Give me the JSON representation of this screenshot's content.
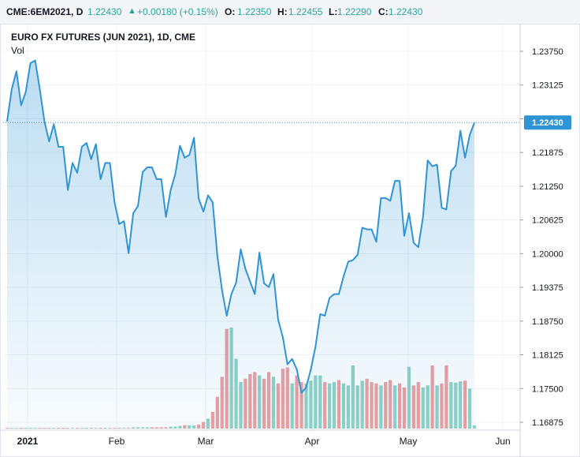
{
  "header": {
    "symbol": "CME:6EM2021, D",
    "last": "1.22430",
    "change": "+0.00180 (+0.15%)",
    "open_label": "O:",
    "open": "1.22350",
    "high_label": "H:",
    "high": "1.22455",
    "low_label": "L:",
    "low": "1.22290",
    "close_label": "C:",
    "close": "1.22430"
  },
  "legend": {
    "title": "EURO FX FUTURES (JUN 2021), 1D, CME",
    "vol_label": "Vol"
  },
  "colors": {
    "line": "#2f94d6",
    "area": "#2f94d6",
    "vol_up": "#8fd1c5",
    "vol_down": "#eb9f9f",
    "price_label_bg": "#2f94d6",
    "grid": "#eef0f4"
  },
  "chart_data": {
    "type": "area",
    "title": "EURO FX FUTURES (JUN 2021), 1D, CME",
    "xlabel": "",
    "ylabel": "",
    "ylim": [
      1.16875,
      1.2375
    ],
    "grid": true,
    "y_ticks": [
      "1.23750",
      "1.23125",
      "1.22500",
      "1.21875",
      "1.21250",
      "1.20625",
      "1.20000",
      "1.19375",
      "1.18750",
      "1.18125",
      "1.17500",
      "1.16875"
    ],
    "x_ticks": [
      "2021",
      "Feb",
      "Mar",
      "Apr",
      "May",
      "Jun"
    ],
    "current_price_label": "1.22430",
    "series": [
      {
        "values": [
          1.2245,
          1.2305,
          1.2338,
          1.2275,
          1.23,
          1.2353,
          1.2358,
          1.2305,
          1.2245,
          1.2208,
          1.224,
          1.2198,
          1.2198,
          1.2118,
          1.2168,
          1.215,
          1.2198,
          1.2205,
          1.2175,
          1.2203,
          1.2138,
          1.2168,
          1.2168,
          1.2095,
          1.2055,
          1.206,
          1.2001,
          1.2075,
          1.2088,
          1.2151,
          1.216,
          1.216,
          1.2138,
          1.2138,
          1.2068,
          1.2118,
          1.2148,
          1.22,
          1.2178,
          1.2183,
          1.2215,
          1.2102,
          1.2078,
          1.2108,
          1.2095,
          1.1995,
          1.1932,
          1.1885,
          1.1925,
          1.1946,
          1.2008,
          1.1972,
          1.1948,
          1.1925,
          1.2002,
          1.1945,
          1.1938,
          1.1962,
          1.1878,
          1.1845,
          1.1795,
          1.1805,
          1.1785,
          1.1742,
          1.1752,
          1.1785,
          1.1828,
          1.1888,
          1.1885,
          1.1918,
          1.1925,
          1.1925,
          1.1958,
          1.1985,
          1.1988,
          1.1998,
          1.2048,
          1.2045,
          1.2045,
          1.2022,
          1.2103,
          1.2103,
          1.2098,
          1.2135,
          1.2135,
          1.2033,
          1.2075,
          1.202,
          1.2012,
          1.2068,
          1.2173,
          1.2162,
          1.2165,
          1.2085,
          1.2082,
          1.2153,
          1.2163,
          1.2228,
          1.2178,
          1.222,
          1.2243
        ]
      }
    ],
    "volume": {
      "values": [
        0.1,
        0.1,
        0.1,
        0.1,
        0.1,
        0.1,
        0.1,
        0.1,
        0.1,
        0.1,
        0.1,
        0.1,
        0.1,
        0.1,
        0.1,
        0.1,
        0.1,
        0.1,
        0.1,
        0.1,
        0.1,
        0.1,
        0.1,
        0.1,
        0.1,
        0.1,
        0.1,
        0.2,
        0.2,
        0.2,
        0.2,
        0.2,
        0.2,
        0.2,
        0.2,
        0.3,
        0.3,
        0.4,
        0.5,
        0.5,
        0.5,
        0.6,
        1.0,
        1.5,
        2.5,
        4.8,
        7.8,
        15.0,
        15.2,
        10.5,
        7.0,
        7.5,
        8.2,
        8.5,
        8.0,
        7.5,
        8.5,
        7.8,
        6.8,
        9.0,
        9.2,
        6.8,
        8.0,
        7.0,
        6.8,
        7.2,
        8.0,
        8.0,
        7.0,
        6.8,
        7.0,
        7.3,
        6.8,
        6.5,
        9.5,
        6.5,
        7.2,
        7.5,
        7.0,
        6.8,
        6.5,
        7.0,
        7.3,
        6.5,
        6.8,
        6.2,
        9.3,
        6.5,
        7.0,
        6.2,
        6.5,
        9.5,
        6.5,
        6.8,
        9.5,
        7.0,
        6.9,
        7.1,
        7.2,
        6.0,
        0.5
      ],
      "directions": [
        "d",
        "u",
        "u",
        "d",
        "u",
        "u",
        "u",
        "d",
        "d",
        "d",
        "u",
        "d",
        "d",
        "d",
        "u",
        "d",
        "u",
        "u",
        "d",
        "u",
        "d",
        "u",
        "d",
        "d",
        "d",
        "u",
        "d",
        "u",
        "u",
        "u",
        "u",
        "d",
        "d",
        "d",
        "d",
        "u",
        "u",
        "u",
        "d",
        "u",
        "u",
        "d",
        "d",
        "u",
        "d",
        "d",
        "d",
        "d",
        "u",
        "u",
        "u",
        "d",
        "d",
        "d",
        "u",
        "d",
        "d",
        "u",
        "d",
        "d",
        "d",
        "u",
        "d",
        "d",
        "u",
        "u",
        "u",
        "u",
        "d",
        "u",
        "u",
        "d",
        "u",
        "u",
        "u",
        "u",
        "u",
        "d",
        "d",
        "d",
        "u",
        "d",
        "d",
        "u",
        "d",
        "d",
        "u",
        "d",
        "d",
        "u",
        "u",
        "d",
        "u",
        "d",
        "d",
        "u",
        "u",
        "u",
        "d",
        "u",
        "u"
      ]
    }
  }
}
